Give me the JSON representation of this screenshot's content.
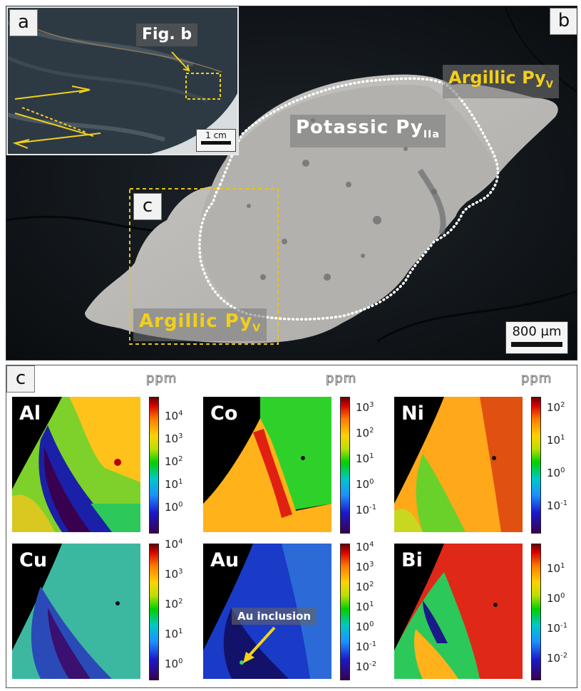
{
  "panel_b": {
    "letter": "b",
    "labels": {
      "argillic_top": "Argillic Py",
      "argillic_top_sub": "V",
      "potassic": "Potassic Py",
      "potassic_sub": "IIa",
      "argillic_bottom": "Argillic Py",
      "argillic_bottom_sub": "V",
      "box_c": "c"
    },
    "scale_bar": "800 μm"
  },
  "inset_a": {
    "letter": "a",
    "fig_label": "Fig. b",
    "scale_bar": "1 cm"
  },
  "panel_c": {
    "letter": "c",
    "unit": "ppm",
    "maps": [
      {
        "element": "Al",
        "ticks": [
          "4",
          "3",
          "2",
          "1",
          "0"
        ]
      },
      {
        "element": "Co",
        "ticks": [
          "3",
          "2",
          "1",
          "0",
          "-1"
        ]
      },
      {
        "element": "Ni",
        "ticks": [
          "2",
          "1",
          "0",
          "-1"
        ]
      },
      {
        "element": "Cu",
        "ticks": [
          "4",
          "3",
          "2",
          "1",
          "0"
        ]
      },
      {
        "element": "Au",
        "ticks": [
          "4",
          "3",
          "2",
          "1",
          "0",
          "-1",
          "-2"
        ],
        "annotation": "Au inclusion"
      },
      {
        "element": "Bi",
        "ticks": [
          "1",
          "0",
          "-1",
          "-2"
        ]
      }
    ]
  },
  "colors": {
    "label_yellow": "#f2cf1a",
    "dashed_box": "#e8c31a"
  }
}
